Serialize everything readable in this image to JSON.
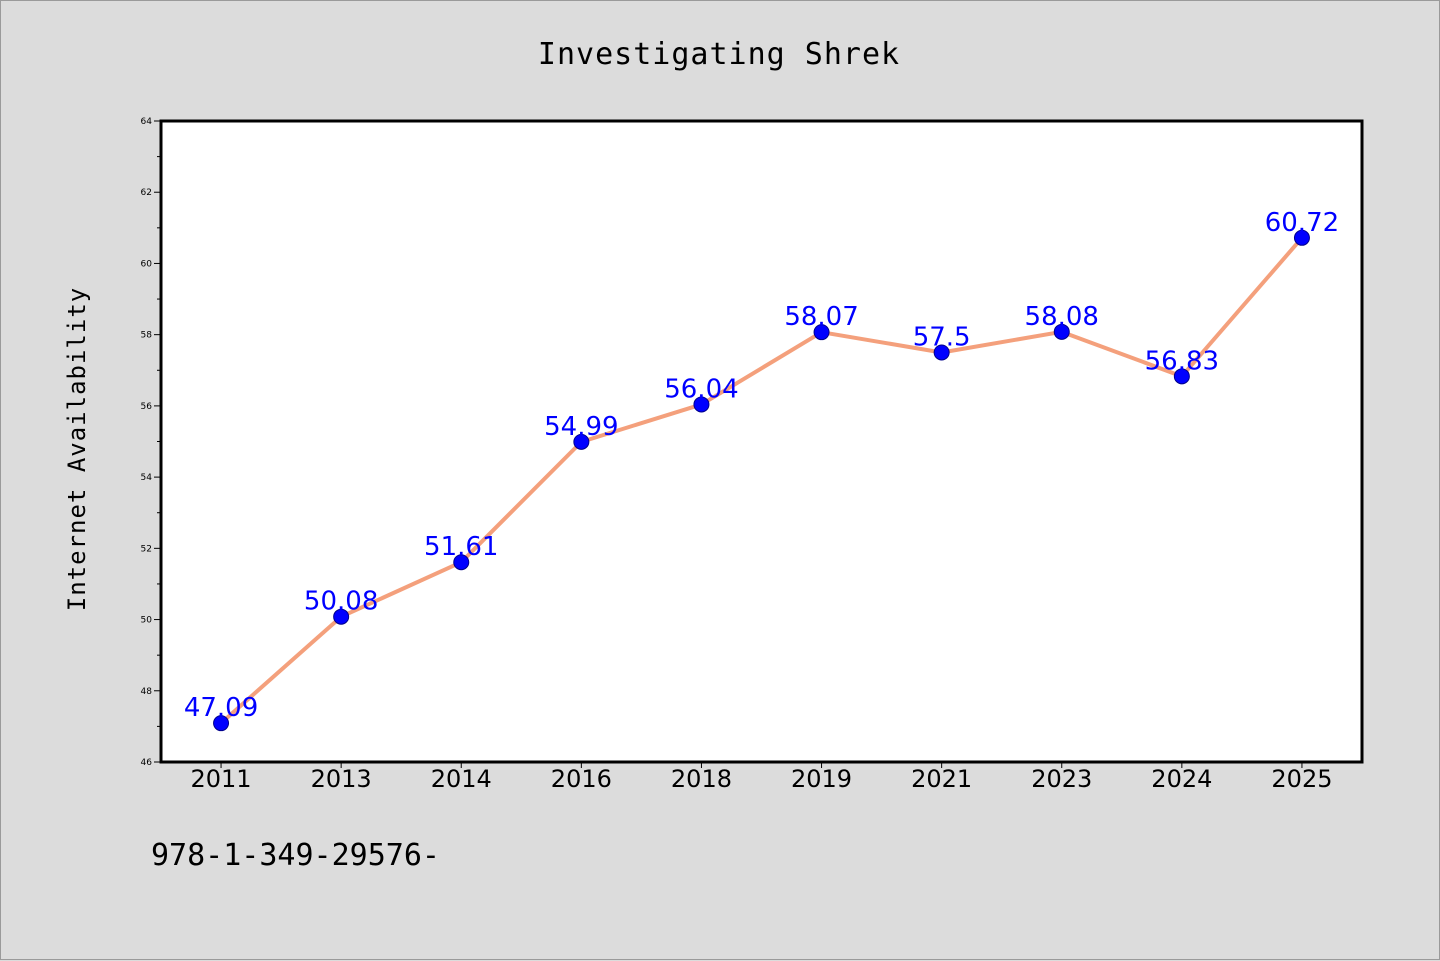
{
  "chart_data": {
    "type": "line",
    "title": "Investigating Shrek",
    "xlabel": "",
    "ylabel": "Internet Availability",
    "categories": [
      "2011",
      "2013",
      "2014",
      "2016",
      "2018",
      "2019",
      "2021",
      "2023",
      "2024",
      "2025"
    ],
    "values": [
      47.09,
      50.08,
      51.61,
      54.99,
      56.04,
      58.07,
      57.5,
      58.08,
      56.83,
      60.72
    ],
    "data_labels": [
      "47.09",
      "50.08",
      "51.61",
      "54.99",
      "56.04",
      "58.07",
      "57.5",
      "58.08",
      "56.83",
      "60.72"
    ],
    "ylim": [
      46,
      64
    ],
    "yticks": [
      46,
      48,
      50,
      52,
      54,
      56,
      58,
      60,
      62,
      64
    ],
    "grid": false,
    "legend": "none",
    "colors": {
      "line": "#f4a07c",
      "marker": "#0000ff",
      "data_label": "#0000ff",
      "plot_background": "#ffffff",
      "figure_background": "#dcdcdc"
    }
  },
  "footnote": "978-1-349-29576-"
}
